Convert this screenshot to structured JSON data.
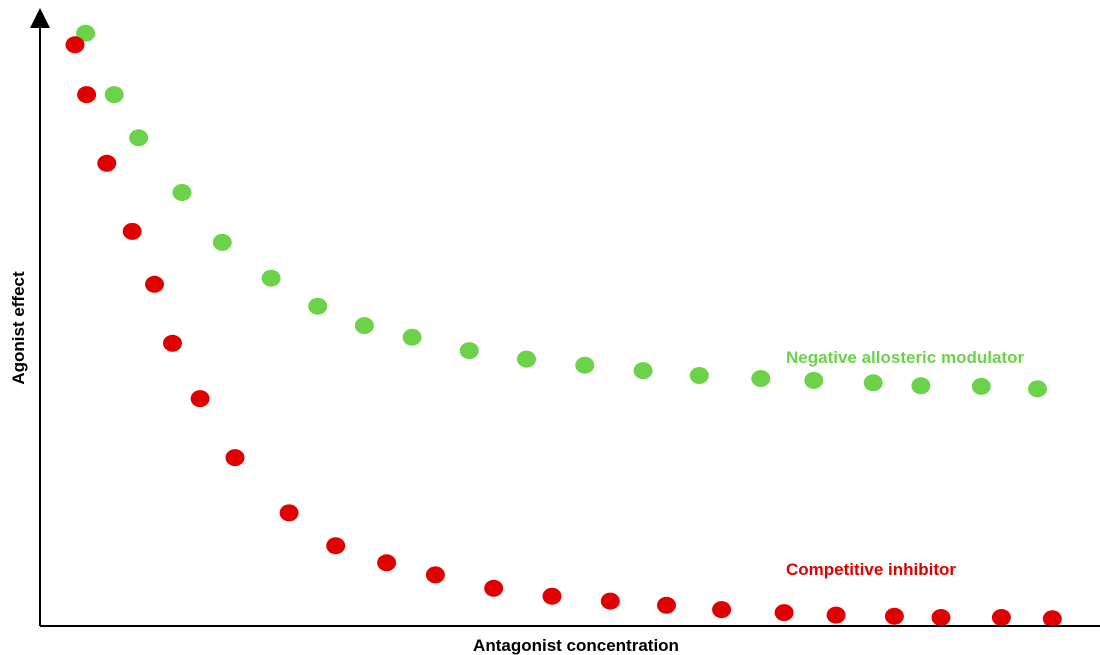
{
  "chart_data": {
    "type": "scatter",
    "title": "",
    "xlabel": "Antagonist concentration",
    "ylabel": "Agonist effect",
    "xlim": [
      0,
      100
    ],
    "ylim": [
      0,
      100
    ],
    "grid": false,
    "x_ticks_shown": false,
    "y_ticks_shown": false,
    "series": [
      {
        "name": "Negative allosteric modulator",
        "color": "#6cd24a",
        "points": [
          [
            4.3,
            97.5
          ],
          [
            7.0,
            87.4
          ],
          [
            9.3,
            80.3
          ],
          [
            13.4,
            71.3
          ],
          [
            17.2,
            63.1
          ],
          [
            21.8,
            57.2
          ],
          [
            26.2,
            52.6
          ],
          [
            30.6,
            49.4
          ],
          [
            35.1,
            47.5
          ],
          [
            40.5,
            45.3
          ],
          [
            45.9,
            43.9
          ],
          [
            51.4,
            42.9
          ],
          [
            56.9,
            42.0
          ],
          [
            62.2,
            41.2
          ],
          [
            68.0,
            40.7
          ],
          [
            73.0,
            40.4
          ],
          [
            78.6,
            40.0
          ],
          [
            83.1,
            39.5
          ],
          [
            88.8,
            39.4
          ],
          [
            94.1,
            39.0
          ]
        ]
      },
      {
        "name": "Competitive inhibitor",
        "color": "#e00000",
        "points": [
          [
            3.3,
            95.6
          ],
          [
            4.4,
            87.4
          ],
          [
            6.3,
            76.1
          ],
          [
            8.7,
            64.9
          ],
          [
            10.8,
            56.2
          ],
          [
            12.5,
            46.5
          ],
          [
            15.1,
            37.4
          ],
          [
            18.4,
            27.7
          ],
          [
            23.5,
            18.6
          ],
          [
            27.9,
            13.2
          ],
          [
            32.7,
            10.4
          ],
          [
            37.3,
            8.4
          ],
          [
            42.8,
            6.2
          ],
          [
            48.3,
            4.9
          ],
          [
            53.8,
            4.1
          ],
          [
            59.1,
            3.4
          ],
          [
            64.3,
            2.7
          ],
          [
            70.2,
            2.2
          ],
          [
            75.1,
            1.8
          ],
          [
            80.6,
            1.6
          ],
          [
            85.0,
            1.4
          ],
          [
            90.7,
            1.4
          ],
          [
            95.5,
            1.2
          ]
        ]
      }
    ]
  }
}
